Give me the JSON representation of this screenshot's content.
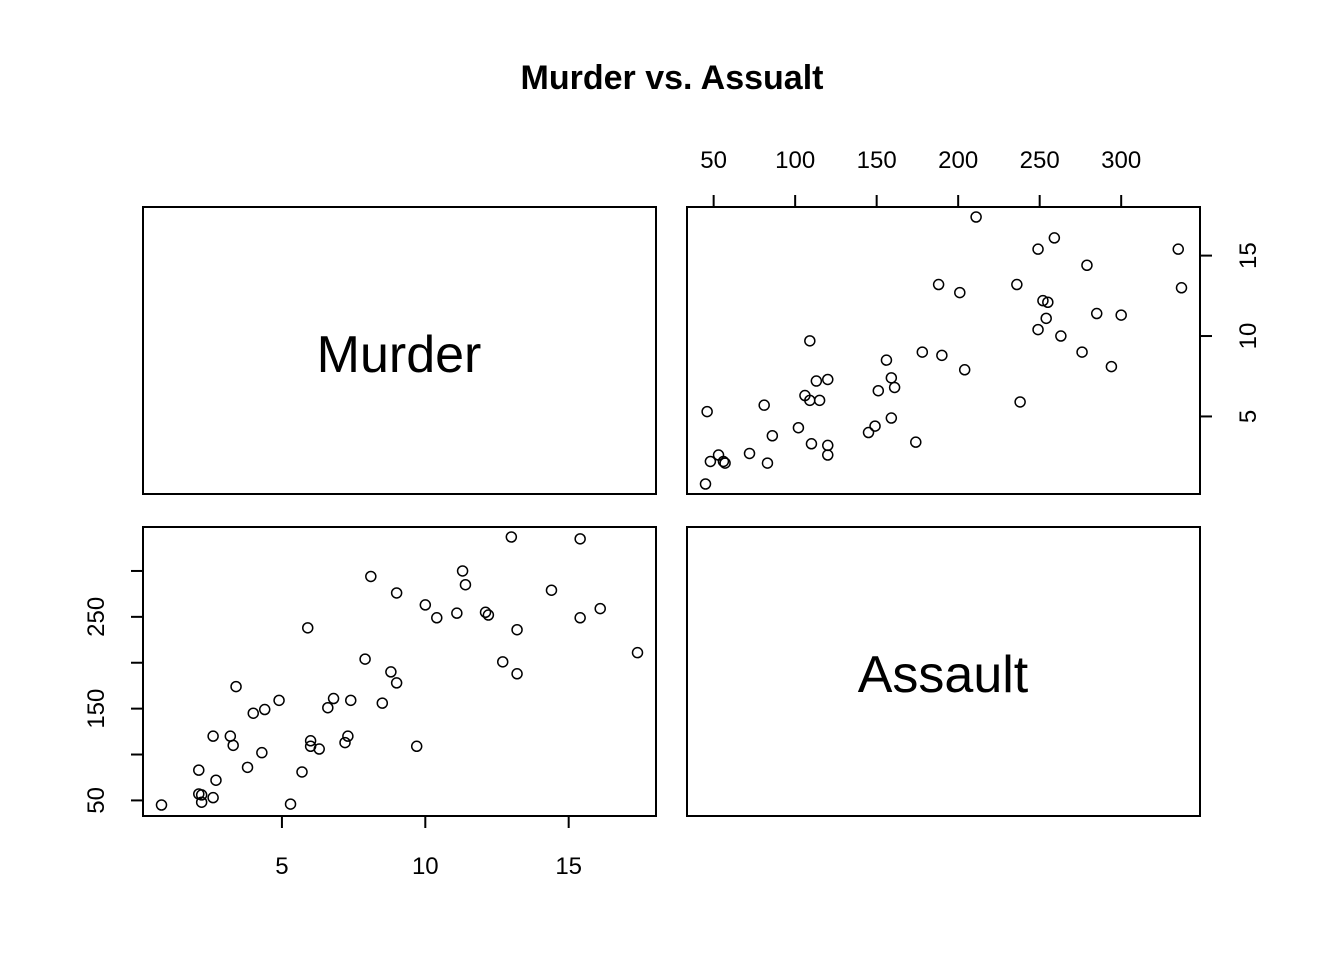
{
  "chart_data": {
    "type": "scatter",
    "title": "Murder vs. Assualt",
    "variables": [
      "Murder",
      "Assault"
    ],
    "murder_ticks": [
      5,
      10,
      15
    ],
    "assault_ticks": [
      50,
      100,
      150,
      200,
      250,
      300
    ],
    "assault_left_ticks": [
      50,
      150,
      250
    ],
    "murder_range": [
      0.8,
      17.4
    ],
    "assault_range": [
      45,
      337
    ],
    "grid": false,
    "points": [
      {
        "murder": 13.2,
        "assault": 236
      },
      {
        "murder": 10.0,
        "assault": 263
      },
      {
        "murder": 8.1,
        "assault": 294
      },
      {
        "murder": 8.8,
        "assault": 190
      },
      {
        "murder": 9.0,
        "assault": 276
      },
      {
        "murder": 7.9,
        "assault": 204
      },
      {
        "murder": 3.3,
        "assault": 110
      },
      {
        "murder": 5.9,
        "assault": 238
      },
      {
        "murder": 15.4,
        "assault": 335
      },
      {
        "murder": 17.4,
        "assault": 211
      },
      {
        "murder": 5.3,
        "assault": 46
      },
      {
        "murder": 2.6,
        "assault": 120
      },
      {
        "murder": 10.4,
        "assault": 249
      },
      {
        "murder": 7.2,
        "assault": 113
      },
      {
        "murder": 2.2,
        "assault": 56
      },
      {
        "murder": 6.0,
        "assault": 115
      },
      {
        "murder": 9.7,
        "assault": 109
      },
      {
        "murder": 15.4,
        "assault": 249
      },
      {
        "murder": 2.1,
        "assault": 83
      },
      {
        "murder": 11.3,
        "assault": 300
      },
      {
        "murder": 4.4,
        "assault": 149
      },
      {
        "murder": 12.1,
        "assault": 255
      },
      {
        "murder": 2.7,
        "assault": 72
      },
      {
        "murder": 16.1,
        "assault": 259
      },
      {
        "murder": 9.0,
        "assault": 178
      },
      {
        "murder": 6.0,
        "assault": 109
      },
      {
        "murder": 4.3,
        "assault": 102
      },
      {
        "murder": 12.2,
        "assault": 252
      },
      {
        "murder": 2.1,
        "assault": 57
      },
      {
        "murder": 7.4,
        "assault": 159
      },
      {
        "murder": 11.4,
        "assault": 285
      },
      {
        "murder": 11.1,
        "assault": 254
      },
      {
        "murder": 13.0,
        "assault": 337
      },
      {
        "murder": 0.8,
        "assault": 45
      },
      {
        "murder": 7.3,
        "assault": 120
      },
      {
        "murder": 6.6,
        "assault": 151
      },
      {
        "murder": 4.9,
        "assault": 159
      },
      {
        "murder": 6.3,
        "assault": 106
      },
      {
        "murder": 3.4,
        "assault": 174
      },
      {
        "murder": 14.4,
        "assault": 279
      },
      {
        "murder": 3.8,
        "assault": 86
      },
      {
        "murder": 13.2,
        "assault": 188
      },
      {
        "murder": 12.7,
        "assault": 201
      },
      {
        "murder": 3.2,
        "assault": 120
      },
      {
        "murder": 2.2,
        "assault": 48
      },
      {
        "murder": 8.5,
        "assault": 156
      },
      {
        "murder": 4.0,
        "assault": 145
      },
      {
        "murder": 5.7,
        "assault": 81
      },
      {
        "murder": 2.6,
        "assault": 53
      },
      {
        "murder": 6.8,
        "assault": 161
      }
    ]
  }
}
